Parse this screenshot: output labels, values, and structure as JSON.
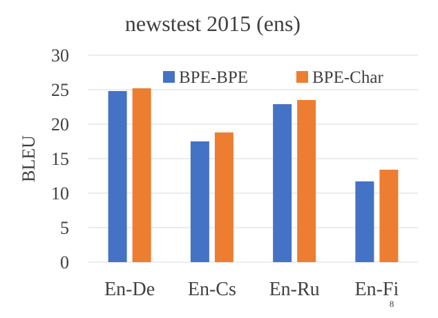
{
  "chart_data": {
    "type": "bar",
    "title": "newstest 2015 (ens)",
    "xlabel": "",
    "ylabel": "BLEU",
    "categories": [
      "En-De",
      "En-Cs",
      "En-Ru",
      "En-Fi"
    ],
    "series": [
      {
        "name": "BPE-BPE",
        "color": "#4472C4",
        "values": [
          24.8,
          17.5,
          22.9,
          11.7
        ]
      },
      {
        "name": "BPE-Char",
        "color": "#ED7D31",
        "values": [
          25.2,
          18.8,
          23.5,
          13.4
        ]
      }
    ],
    "ylim": [
      0,
      30
    ],
    "yticks": [
      0,
      5,
      10,
      15,
      20,
      25,
      30
    ],
    "grid": true,
    "legend_position": "top-right"
  },
  "page_number": "8"
}
